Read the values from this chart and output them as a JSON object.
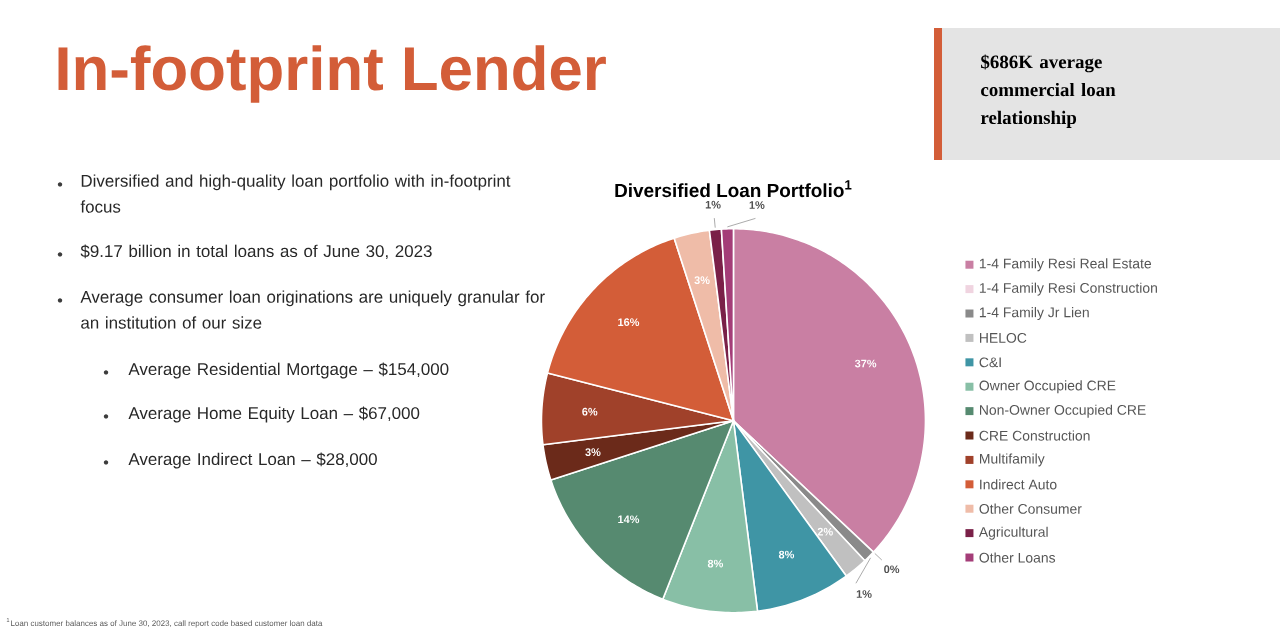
{
  "chart_data": [
    {
      "type": "other",
      "title": "In-footprint Lender",
      "subtitle": "$686K average commercial loan relationship",
      "annotations": [
        "Diversified and high-quality loan portfolio with in-footprint focus",
        "$9.17 billion in total loans as of June 30, 2023",
        "Average consumer loan originations are uniquely granular for an institution of our size",
        "Average Residential Mortgage –  $154,000",
        "Average Home Equity Loan – $67,000",
        "Average Indirect Loan – $28,000",
        "$^{1}$Loan customer balances as of June 30, 2023, call report code based customer loan data"
      ]
    },
    {
      "type": "pie",
      "title": "Diversified Loan Portfolio$^{1}$",
      "categories": [
        "1-4 Family Resi Real Estate",
        "1-4 Family Resi Construction",
        "1-4 Family Jr Lien",
        "HELOC",
        "C&I",
        "Owner Occupied CRE",
        "Non-Owner Occupied CRE",
        "CRE Construction",
        "Multifamily",
        "Indirect Auto",
        "Other Consumer",
        "Agricultural",
        "Other Loans"
      ],
      "values": [
        37,
        0,
        1,
        2,
        8,
        8,
        14,
        3,
        6,
        16,
        3,
        1,
        1
      ],
      "value_labels": [
        "37%",
        "0%",
        "1%",
        "2%",
        "8%",
        "8%",
        "14%",
        "3%",
        "6%",
        "16%",
        "3%",
        "1%",
        "1%"
      ],
      "colors": [
        "#c97fa3",
        "#f0d4e0",
        "#8a8a8a",
        "#c0c0c0",
        "#3f95a5",
        "#88bfa6",
        "#568a70",
        "#6b2a1a",
        "#a0412a",
        "#d35d38",
        "#efbca8",
        "#7a2048",
        "#a43d78"
      ],
      "legend": "right"
    }
  ]
}
